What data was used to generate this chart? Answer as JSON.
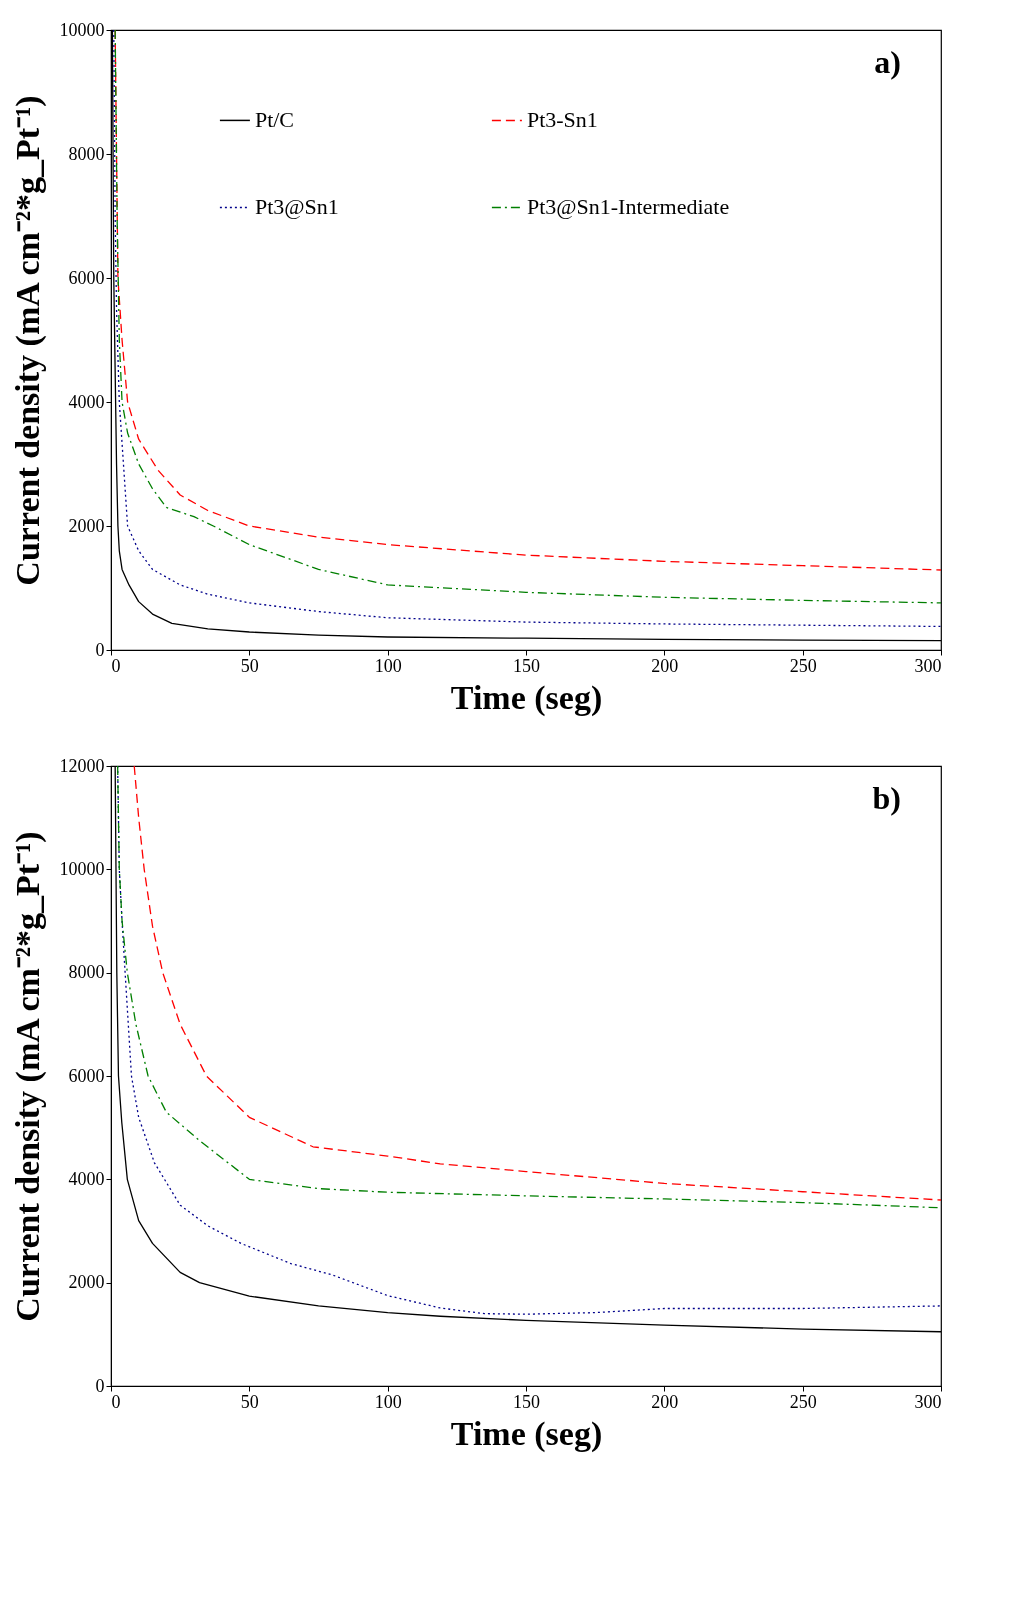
{
  "chart_data": [
    {
      "type": "line",
      "xlabel": "Time (seg)",
      "ylabel": "Current density (mA cm⁻²*g_Pt⁻¹)",
      "annotations": [
        "a)"
      ],
      "legend": "top",
      "grid": false,
      "marker": "none",
      "xlim": [
        0,
        300
      ],
      "xticks": [
        0,
        50,
        100,
        150,
        200,
        250,
        300
      ],
      "ylim": [
        0,
        10000
      ],
      "yticks": [
        0,
        2000,
        4000,
        6000,
        8000,
        10000
      ],
      "series": [
        {
          "name": "Pt/C",
          "color": "#000000",
          "line_style": "solid",
          "x": [
            0.5,
            1,
            2,
            2.5,
            3,
            4,
            6.5,
            10,
            15,
            22,
            35,
            50,
            75,
            100,
            150,
            200,
            250,
            300
          ],
          "values": [
            10000,
            6000,
            3000,
            2000,
            1600,
            1300,
            1050,
            780,
            580,
            430,
            340,
            290,
            240,
            210,
            190,
            170,
            160,
            150
          ]
        },
        {
          "name": "Pt3-Sn1",
          "color": "#ff0000",
          "line_style": "dashed",
          "x": [
            1.5,
            2,
            2.5,
            4,
            6,
            10,
            17,
            25,
            35,
            50,
            75,
            100,
            150,
            200,
            250,
            300
          ],
          "values": [
            10000,
            8000,
            6000,
            5000,
            4000,
            3400,
            2900,
            2500,
            2250,
            2000,
            1820,
            1700,
            1530,
            1430,
            1360,
            1290
          ]
        },
        {
          "name": "Pt3@Sn1",
          "color": "#00008b",
          "line_style": "dotted",
          "x": [
            1,
            1.5,
            2,
            3,
            4.5,
            6,
            10,
            15,
            25,
            35,
            50,
            75,
            100,
            150,
            200,
            250,
            300
          ],
          "values": [
            10000,
            7000,
            5500,
            4000,
            3000,
            2000,
            1600,
            1300,
            1050,
            900,
            760,
            620,
            520,
            450,
            420,
            400,
            380
          ]
        },
        {
          "name": "Pt3@Sn1-Intermediate",
          "color": "#007f00",
          "line_style": "dashdot",
          "x": [
            1.5,
            2.2,
            3,
            4,
            6,
            10,
            15,
            20,
            30,
            37,
            50,
            75,
            100,
            150,
            200,
            250,
            300
          ],
          "values": [
            10000,
            7000,
            5000,
            4000,
            3500,
            3000,
            2600,
            2300,
            2150,
            2000,
            1700,
            1300,
            1050,
            930,
            850,
            800,
            760
          ]
        }
      ]
    },
    {
      "type": "line",
      "xlabel": "Time (seg)",
      "ylabel": "Current density (mA cm⁻²*g_Pt⁻¹)",
      "annotations": [
        "b)"
      ],
      "legend": "top",
      "grid": false,
      "marker": "none",
      "xlim": [
        0,
        300
      ],
      "xticks": [
        0,
        50,
        100,
        150,
        200,
        250,
        300
      ],
      "ylim": [
        0,
        12000
      ],
      "yticks": [
        0,
        2000,
        4000,
        6000,
        8000,
        10000,
        12000
      ],
      "series": [
        {
          "name": "Pt/C",
          "color": "#000000",
          "line_style": "solid",
          "x": [
            1.5,
            2.1,
            2.7,
            3.9,
            5.9,
            10,
            15,
            25,
            32,
            50,
            75,
            100,
            119,
            150,
            200,
            250,
            300
          ],
          "values": [
            12000,
            8000,
            6000,
            5100,
            4000,
            3200,
            2760,
            2200,
            2000,
            1740,
            1550,
            1420,
            1350,
            1270,
            1180,
            1100,
            1050
          ]
        },
        {
          "name": "Pt3-Sn1",
          "color": "#ff0000",
          "line_style": "dashed",
          "x": [
            8.4,
            10,
            12,
            15,
            18.7,
            25,
            34.5,
            50,
            73,
            100,
            119,
            150,
            200,
            250,
            300
          ],
          "values": [
            12000,
            11000,
            10000,
            8900,
            8000,
            7000,
            6000,
            5200,
            4630,
            4450,
            4300,
            4150,
            3920,
            3760,
            3600
          ]
        },
        {
          "name": "Pt3@Sn1",
          "color": "#00008b",
          "line_style": "dotted",
          "x": [
            2.4,
            3,
            4,
            5.1,
            7.4,
            10,
            15.7,
            25,
            35,
            47,
            65,
            80,
            100,
            119,
            135,
            150,
            175,
            200,
            250,
            300
          ],
          "values": [
            12000,
            10000,
            9000,
            8000,
            6000,
            5200,
            4320,
            3500,
            3100,
            2760,
            2370,
            2150,
            1750,
            1510,
            1400,
            1390,
            1420,
            1500,
            1500,
            1550
          ]
        },
        {
          "name": "Pt3@Sn1-Intermediate",
          "color": "#007f00",
          "line_style": "dashdot",
          "x": [
            2.4,
            3,
            4,
            5.9,
            9,
            13.4,
            20,
            32,
            50,
            75,
            100,
            150,
            200,
            250,
            300
          ],
          "values": [
            12000,
            10000,
            9000,
            8000,
            7000,
            6000,
            5300,
            4750,
            4000,
            3820,
            3750,
            3680,
            3620,
            3550,
            3450
          ]
        }
      ]
    }
  ]
}
